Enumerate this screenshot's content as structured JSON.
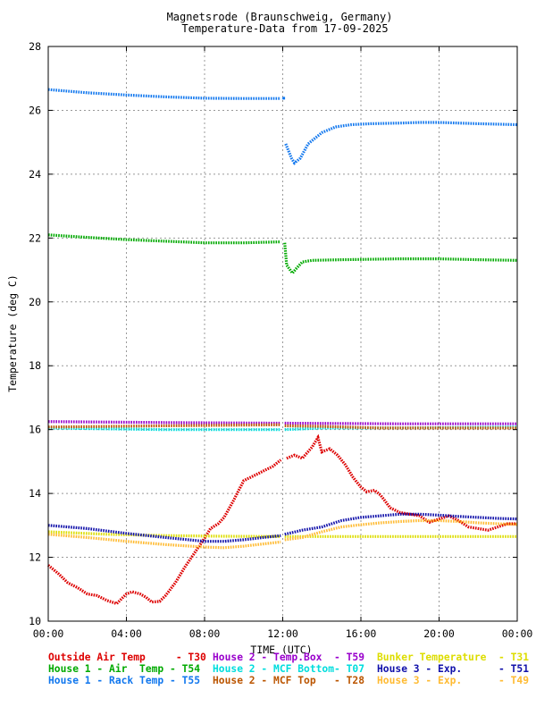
{
  "chart_data": {
    "type": "scatter",
    "title": "Magnetsrode (Braunschweig, Germany)",
    "subtitle": "Temperature-Data from 17-09-2025",
    "xlabel": "TIME (UTC)",
    "ylabel": "Temperature (deg C)",
    "xlim": [
      0,
      24
    ],
    "ylim": [
      10,
      28
    ],
    "x_ticks": [
      "00:00",
      "04:00",
      "08:00",
      "12:00",
      "16:00",
      "20:00",
      "00:00"
    ],
    "y_ticks": [
      10,
      12,
      14,
      16,
      18,
      20,
      22,
      24,
      26,
      28
    ],
    "grid": true,
    "legend_position": "bottom",
    "series": [
      {
        "name": "Outside Air Temp     - T30",
        "color": "#dd0000",
        "unit_hours": true,
        "segments": [
          [
            [
              0,
              11.75
            ],
            [
              0.5,
              11.5
            ],
            [
              1,
              11.2
            ],
            [
              1.5,
              11.05
            ],
            [
              2,
              10.85
            ],
            [
              2.5,
              10.8
            ],
            [
              3,
              10.65
            ],
            [
              3.5,
              10.55
            ],
            [
              4,
              10.85
            ],
            [
              4.3,
              10.92
            ],
            [
              4.7,
              10.85
            ],
            [
              5,
              10.75
            ],
            [
              5.3,
              10.6
            ],
            [
              5.7,
              10.62
            ],
            [
              6,
              10.8
            ],
            [
              6.5,
              11.2
            ],
            [
              7,
              11.7
            ],
            [
              7.5,
              12.15
            ],
            [
              8,
              12.6
            ],
            [
              8.3,
              12.9
            ],
            [
              8.7,
              13.05
            ],
            [
              9,
              13.25
            ],
            [
              9.5,
              13.8
            ],
            [
              10,
              14.4
            ],
            [
              10.5,
              14.55
            ],
            [
              11,
              14.7
            ],
            [
              11.5,
              14.85
            ],
            [
              11.9,
              15.05
            ]
          ],
          [
            [
              12.2,
              15.1
            ],
            [
              12.6,
              15.2
            ],
            [
              13,
              15.1
            ],
            [
              13.5,
              15.45
            ],
            [
              13.8,
              15.75
            ],
            [
              14,
              15.3
            ],
            [
              14.4,
              15.4
            ],
            [
              14.8,
              15.2
            ],
            [
              15.2,
              14.9
            ],
            [
              15.6,
              14.5
            ],
            [
              16,
              14.2
            ],
            [
              16.3,
              14.05
            ],
            [
              16.7,
              14.1
            ],
            [
              17,
              13.95
            ],
            [
              17.5,
              13.55
            ],
            [
              18,
              13.4
            ],
            [
              18.5,
              13.35
            ],
            [
              19,
              13.3
            ],
            [
              19.5,
              13.1
            ],
            [
              20,
              13.2
            ],
            [
              20.5,
              13.3
            ],
            [
              21,
              13.15
            ],
            [
              21.5,
              12.95
            ],
            [
              22,
              12.9
            ],
            [
              22.5,
              12.85
            ],
            [
              23,
              12.95
            ],
            [
              23.5,
              13.05
            ],
            [
              24,
              13.05
            ]
          ]
        ]
      },
      {
        "name": "House 1 - Air  Temp - T54",
        "color": "#00aa00",
        "segments": [
          [
            [
              0,
              22.1
            ],
            [
              2,
              22.02
            ],
            [
              4,
              21.95
            ],
            [
              6,
              21.9
            ],
            [
              8,
              21.85
            ],
            [
              10,
              21.85
            ],
            [
              11.9,
              21.88
            ]
          ],
          [
            [
              12.1,
              21.85
            ],
            [
              12.2,
              21.15
            ],
            [
              12.5,
              20.9
            ],
            [
              12.7,
              21.05
            ],
            [
              13,
              21.25
            ],
            [
              13.5,
              21.3
            ],
            [
              15,
              21.32
            ],
            [
              18,
              21.35
            ],
            [
              20,
              21.35
            ],
            [
              22,
              21.32
            ],
            [
              24,
              21.3
            ]
          ]
        ]
      },
      {
        "name": "House 1 - Rack Temp - T55",
        "color": "#1177ee",
        "segments": [
          [
            [
              0,
              26.65
            ],
            [
              2,
              26.55
            ],
            [
              4,
              26.48
            ],
            [
              6,
              26.42
            ],
            [
              8,
              26.38
            ],
            [
              10,
              26.37
            ],
            [
              11.9,
              26.37
            ]
          ],
          [
            [
              12.05,
              26.38
            ]
          ],
          [
            [
              12.15,
              24.95
            ],
            [
              12.45,
              24.5
            ],
            [
              12.6,
              24.35
            ],
            [
              12.9,
              24.5
            ],
            [
              13.3,
              24.95
            ],
            [
              14,
              25.3
            ],
            [
              14.7,
              25.48
            ],
            [
              15.5,
              25.55
            ],
            [
              16.5,
              25.58
            ],
            [
              18,
              25.6
            ],
            [
              19,
              25.62
            ],
            [
              20,
              25.62
            ],
            [
              22,
              25.58
            ],
            [
              24,
              25.55
            ]
          ]
        ]
      },
      {
        "name": "House 2 - Temp.Box  - T59",
        "color": "#9900cc",
        "segments": [
          [
            [
              0,
              16.25
            ],
            [
              6,
              16.22
            ],
            [
              11.9,
              16.2
            ]
          ],
          [
            [
              12.1,
              16.2
            ],
            [
              18,
              16.18
            ],
            [
              24,
              16.18
            ]
          ]
        ]
      },
      {
        "name": "House 2 - MCF Bottom- T07",
        "color": "#00dddd",
        "segments": [
          [
            [
              0,
              16.05
            ],
            [
              6,
              16.0
            ],
            [
              11.9,
              16.0
            ]
          ],
          [
            [
              12.1,
              16.0
            ],
            [
              14,
              16.05
            ],
            [
              18,
              16.05
            ],
            [
              24,
              16.08
            ]
          ]
        ]
      },
      {
        "name": "House 2 - MCF Top   - T28",
        "color": "#bb5500",
        "segments": [
          [
            [
              0,
              16.08
            ],
            [
              6,
              16.12
            ],
            [
              11.9,
              16.15
            ]
          ],
          [
            [
              12.1,
              16.12
            ],
            [
              14,
              16.1
            ],
            [
              17,
              16.05
            ],
            [
              20,
              16.05
            ],
            [
              24,
              16.05
            ]
          ]
        ]
      },
      {
        "name": "Bunker Temperature  - T31",
        "color": "#dddd00",
        "segments": [
          [
            [
              0,
              12.8
            ],
            [
              3,
              12.72
            ],
            [
              6,
              12.68
            ],
            [
              9,
              12.66
            ],
            [
              11.9,
              12.65
            ]
          ],
          [
            [
              12.1,
              12.65
            ],
            [
              16,
              12.65
            ],
            [
              20,
              12.65
            ],
            [
              24,
              12.65
            ]
          ]
        ]
      },
      {
        "name": "House 3 - Exp.      - T51",
        "color": "#1111aa",
        "segments": [
          [
            [
              0,
              13.0
            ],
            [
              2,
              12.9
            ],
            [
              4,
              12.75
            ],
            [
              6,
              12.62
            ],
            [
              8,
              12.5
            ],
            [
              9,
              12.5
            ],
            [
              10,
              12.55
            ],
            [
              11,
              12.62
            ],
            [
              11.9,
              12.68
            ]
          ],
          [
            [
              12.1,
              12.72
            ],
            [
              13,
              12.85
            ],
            [
              14,
              12.95
            ],
            [
              15,
              13.15
            ],
            [
              16,
              13.25
            ],
            [
              17,
              13.3
            ],
            [
              18,
              13.35
            ],
            [
              19,
              13.35
            ],
            [
              20,
              13.32
            ],
            [
              21,
              13.28
            ],
            [
              22,
              13.25
            ],
            [
              23,
              13.22
            ],
            [
              24,
              13.2
            ]
          ]
        ]
      },
      {
        "name": "House 3 - Exp.      - T49",
        "color": "#ffbb33",
        "segments": [
          [
            [
              0,
              12.72
            ],
            [
              2,
              12.62
            ],
            [
              4,
              12.5
            ],
            [
              6,
              12.4
            ],
            [
              8,
              12.32
            ],
            [
              9,
              12.3
            ],
            [
              10,
              12.35
            ],
            [
              11,
              12.42
            ],
            [
              11.9,
              12.48
            ]
          ],
          [
            [
              12.1,
              12.55
            ],
            [
              13,
              12.62
            ],
            [
              14,
              12.8
            ],
            [
              15,
              12.95
            ],
            [
              16,
              13.02
            ],
            [
              17,
              13.08
            ],
            [
              18,
              13.12
            ],
            [
              19,
              13.15
            ],
            [
              20,
              13.15
            ],
            [
              21,
              13.12
            ],
            [
              22,
              13.08
            ],
            [
              23,
              13.05
            ],
            [
              24,
              13.03
            ]
          ]
        ]
      }
    ]
  }
}
